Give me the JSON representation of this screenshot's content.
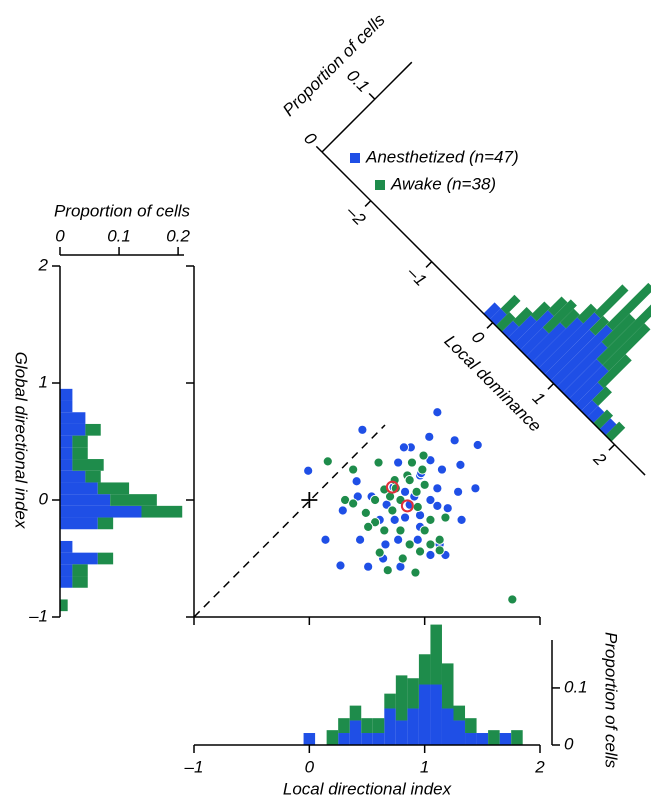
{
  "chart_data": [
    {
      "type": "scatter",
      "xlim": [
        -1,
        2
      ],
      "ylim": [
        -1,
        2
      ],
      "xticks": [
        -1,
        0,
        1,
        2
      ],
      "yticks": [
        -1,
        0,
        1,
        2
      ],
      "series": [
        {
          "name": "Anesthetized (n=47)",
          "color": "#1f4fe6",
          "x": [
            -0.01,
            0.46,
            1.11,
            0.41,
            0.73,
            1.04,
            1.26,
            1.46,
            0.88,
            1.05,
            0.77,
            1.31,
            0.96,
            1.15,
            1.11,
            1.29,
            1.44,
            0.83,
            0.91,
            1.05,
            1.11,
            1.2,
            1.32,
            0.67,
            0.42,
            0.29,
            0.61,
            0.83,
            0.96,
            0.14,
            0.44,
            0.66,
            0.77,
            0.94,
            1.13,
            1.05,
            1.18,
            0.64,
            0.79,
            0.51,
            0.27,
            0.82,
            0.97,
            0.87,
            0.54,
            0.74,
            0.96
          ],
          "y": [
            0.25,
            0.6,
            0.75,
            0.16,
            0.11,
            0.54,
            0.51,
            0.47,
            0.45,
            0.34,
            0.32,
            0.3,
            0.21,
            0.26,
            0.1,
            0.07,
            0.1,
            0.07,
            0.03,
            0.0,
            -0.05,
            -0.07,
            -0.17,
            -0.04,
            0.03,
            -0.09,
            -0.17,
            -0.15,
            -0.13,
            -0.34,
            -0.34,
            -0.38,
            -0.34,
            -0.34,
            -0.38,
            -0.47,
            -0.47,
            -0.5,
            -0.57,
            -0.57,
            -0.56,
            0.45,
            0.23,
            -0.04,
            0.03,
            -0.17,
            -0.23
          ]
        },
        {
          "name": "Awake (n=38)",
          "color": "#1e8c4b",
          "x": [
            0.16,
            0.38,
            0.6,
            0.99,
            0.98,
            0.85,
            1.0,
            0.93,
            0.87,
            0.74,
            0.7,
            0.79,
            0.65,
            0.57,
            0.31,
            0.38,
            0.49,
            0.57,
            0.72,
            0.94,
            1.05,
            1.18,
            1.0,
            0.79,
            0.87,
            0.65,
            0.51,
            1.05,
            1.13,
            0.96,
            0.81,
            0.92,
            0.61,
            0.68,
            1.76,
            0.75,
            0.89,
            1.13
          ],
          "y": [
            0.33,
            0.26,
            0.32,
            0.38,
            0.26,
            0.21,
            0.13,
            0.07,
            0.17,
            0.17,
            0.03,
            0.0,
            0.09,
            0.0,
            0.0,
            -0.03,
            -0.11,
            -0.19,
            -0.09,
            -0.06,
            -0.17,
            -0.15,
            -0.26,
            -0.26,
            -0.38,
            -0.26,
            -0.23,
            -0.38,
            -0.43,
            -0.44,
            -0.5,
            -0.62,
            -0.45,
            -0.6,
            -0.85,
            0.1,
            0.32,
            -0.34
          ]
        }
      ],
      "highlight_points": {
        "color": "#e0303a",
        "x": [
          0.72,
          0.85
        ],
        "y": [
          0.11,
          -0.05
        ]
      }
    },
    {
      "type": "histogram",
      "orientation": "vertical",
      "x_label": "Local directional index",
      "y_label": "Proportion of cells",
      "bins": [
        -0.05,
        0.05,
        0.15,
        0.25,
        0.35,
        0.45,
        0.55,
        0.65,
        0.75,
        0.85,
        0.95,
        1.05,
        1.15,
        1.25,
        1.35,
        1.45,
        1.55,
        1.65,
        1.75,
        1.85
      ],
      "series": [
        {
          "color": "#1f4fe6",
          "values": [
            0.021,
            0,
            0,
            0.021,
            0.043,
            0.021,
            0.021,
            0.064,
            0.043,
            0.064,
            0.106,
            0.106,
            0.064,
            0.043,
            0.021,
            0.021,
            0,
            0.021,
            0
          ]
        },
        {
          "color": "#1e8c4b",
          "values": [
            0,
            0,
            0.026,
            0.026,
            0.026,
            0.026,
            0.026,
            0.026,
            0.079,
            0.053,
            0.053,
            0.105,
            0.079,
            0.026,
            0.026,
            0,
            0.026,
            0,
            0.026
          ]
        }
      ],
      "xlim": [
        -1,
        2
      ],
      "xticks": [
        {
          "value": -1,
          "label": "–1"
        },
        0,
        1,
        2
      ],
      "ylim": [
        0,
        0.184
      ],
      "yticks": [
        0,
        0.1
      ]
    },
    {
      "type": "histogram",
      "orientation": "horizontal",
      "x_label": "Proportion of cells",
      "y_label": "Global directional index",
      "bins": [
        -0.95,
        -0.85,
        -0.75,
        -0.65,
        -0.55,
        -0.45,
        -0.35,
        -0.25,
        -0.15,
        -0.05,
        0.05,
        0.15,
        0.25,
        0.35,
        0.45,
        0.55,
        0.65,
        0.75,
        0.85,
        0.95
      ],
      "series": [
        {
          "color": "#1f4fe6",
          "values": [
            0,
            0,
            0.021,
            0.021,
            0.064,
            0.021,
            0,
            0.064,
            0.138,
            0.085,
            0.064,
            0.043,
            0.021,
            0.021,
            0.021,
            0.043,
            0.043,
            0.021,
            0.021
          ]
        },
        {
          "color": "#1e8c4b",
          "values": [
            0.013,
            0,
            0.026,
            0.026,
            0.026,
            0,
            0,
            0.026,
            0.069,
            0.079,
            0.053,
            0.026,
            0.053,
            0.026,
            0.026,
            0.026,
            0,
            0,
            0
          ]
        }
      ],
      "xlim": [
        0,
        0.21
      ],
      "xticks": [
        0,
        0.1,
        0.2
      ],
      "ylim": [
        -1,
        2
      ],
      "yticks": [
        {
          "value": -1,
          "label": "–1"
        },
        0,
        1,
        2
      ]
    },
    {
      "type": "histogram",
      "orientation": "diagonal",
      "x_label": "Local dominance",
      "y_label": "Proportion of cells",
      "bins": [
        -0.15,
        -0.05,
        0.05,
        0.15,
        0.25,
        0.35,
        0.45,
        0.55,
        0.65,
        0.75,
        0.85,
        0.95,
        1.05,
        1.15,
        1.25,
        1.35,
        1.45,
        1.55,
        1.65,
        1.75,
        1.85,
        1.95
      ],
      "series": [
        {
          "color": "#1f4fe6",
          "values": [
            0.021,
            0.021,
            0,
            0.021,
            0.043,
            0.064,
            0.043,
            0.064,
            0.085,
            0.106,
            0.085,
            0.106,
            0.085,
            0.064,
            0.064,
            0.043,
            0.021,
            0.021,
            0,
            0.021,
            0
          ]
        },
        {
          "color": "#1e8c4b",
          "values": [
            0,
            0.026,
            0.026,
            0.026,
            0.026,
            0.026,
            0.053,
            0.026,
            0.026,
            0.053,
            0.026,
            0.079,
            0.053,
            0.105,
            0.079,
            0.053,
            0.026,
            0,
            0.026,
            0,
            0.026
          ]
        }
      ],
      "xlim": [
        -2.8,
        2.5
      ],
      "xticks": [
        {
          "value": -2,
          "label": "–2"
        },
        {
          "value": -1,
          "label": "–1"
        },
        0,
        1,
        2
      ],
      "ylim": [
        0,
        0.17
      ],
      "yticks": [
        0,
        0.1
      ]
    }
  ]
}
